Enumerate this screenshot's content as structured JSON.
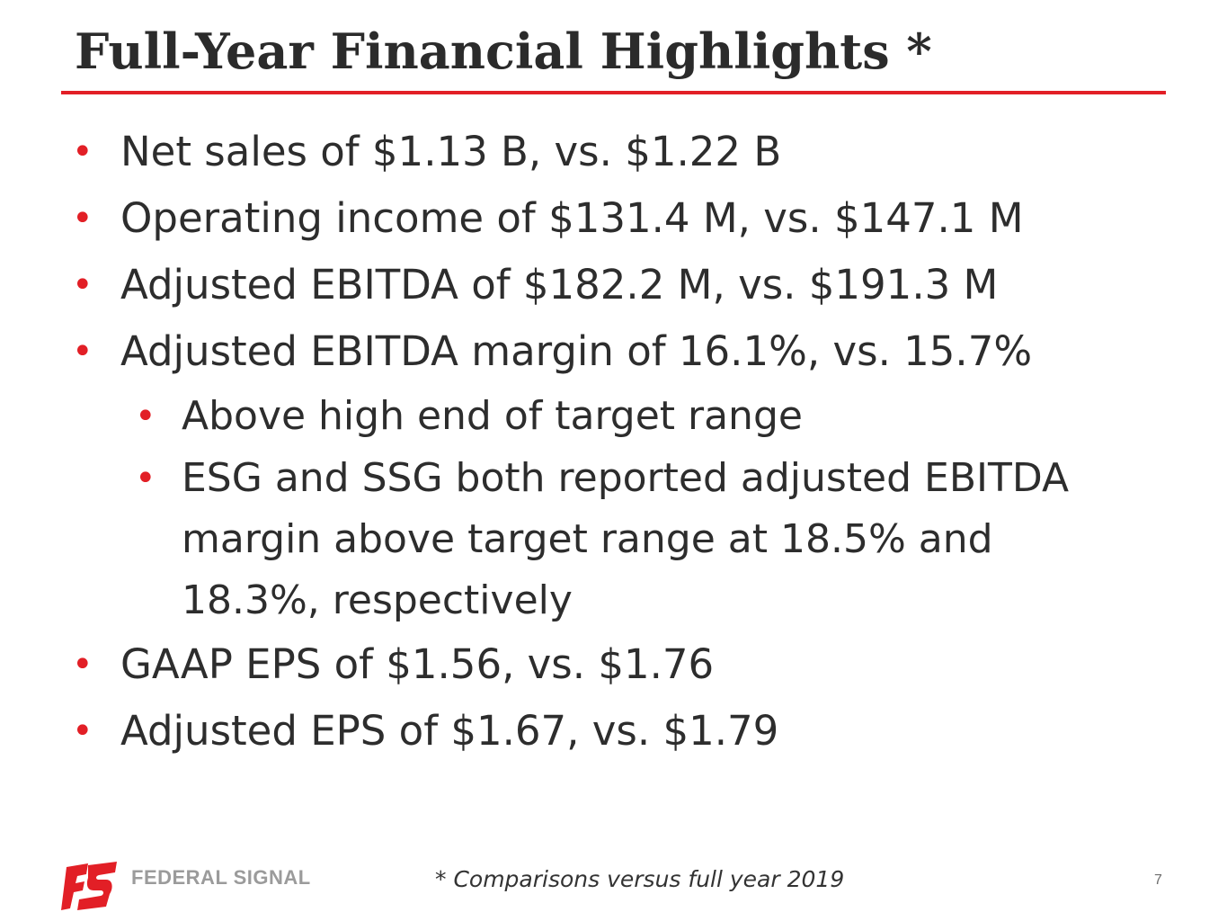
{
  "slide": {
    "title": "Full-Year Financial Highlights *",
    "bullets": [
      {
        "level": 1,
        "text": "Net sales of $1.13 B, vs. $1.22 B"
      },
      {
        "level": 1,
        "text": "Operating income of $131.4 M, vs. $147.1 M"
      },
      {
        "level": 1,
        "text": "Adjusted EBITDA of $182.2 M, vs. $191.3 M"
      },
      {
        "level": 1,
        "text": "Adjusted EBITDA margin of 16.1%, vs. 15.7%"
      },
      {
        "level": 2,
        "text": "Above high end of target range"
      },
      {
        "level": 2,
        "text": "ESG and SSG both reported adjusted EBITDA margin above target range at 18.5% and 18.3%, respectively"
      },
      {
        "level": 1,
        "text": "GAAP EPS of $1.56, vs. $1.76"
      },
      {
        "level": 1,
        "text": "Adjusted EPS of $1.67, vs. $1.79"
      }
    ],
    "bullet_glyph": "•",
    "footnote": "* Comparisons versus full year 2019",
    "page_number": "7"
  },
  "brand": {
    "name": "FEDERAL SIGNAL",
    "logo_icon": "federal-signal-logo-icon",
    "accent_color": "#e21f26",
    "text_color": "#2d2d2d",
    "logo_text_color": "#9b9b9b"
  }
}
